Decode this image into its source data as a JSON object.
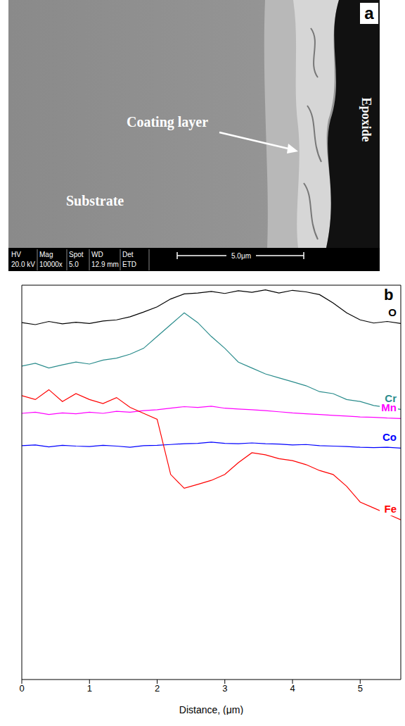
{
  "panel_a": {
    "panel_label": "a",
    "labels": {
      "substrate": "Substrate",
      "coating": "Coating layer",
      "epoxide": "Epoxide"
    },
    "info_bar": {
      "headers": [
        "HV",
        "Mag",
        "Spot",
        "WD",
        "Det"
      ],
      "values": [
        "20.0 kV",
        "10000x",
        "5.0",
        "12.9 mm",
        "ETD"
      ]
    },
    "scale_bar": "5.0μm"
  },
  "chart_data": {
    "type": "line",
    "panel_label": "b",
    "x_label": "Distance, (μm)",
    "x": [
      0,
      0.2,
      0.4,
      0.6,
      0.8,
      1.0,
      1.2,
      1.4,
      1.6,
      1.8,
      2.0,
      2.2,
      2.4,
      2.6,
      2.8,
      3.0,
      3.2,
      3.4,
      3.6,
      3.8,
      4.0,
      4.2,
      4.4,
      4.6,
      4.8,
      5.0,
      5.2,
      5.4,
      5.6
    ],
    "xlim": [
      0,
      5.6
    ],
    "xticks": [
      0,
      1,
      2,
      3,
      4,
      5
    ],
    "ylim": [
      0,
      100
    ],
    "yticks": [],
    "tick_labels": "x",
    "grid": false,
    "series": [
      {
        "name": "O",
        "color": "#000000",
        "values": [
          90.5,
          90,
          90.8,
          90.2,
          90.6,
          90.3,
          90.9,
          91.2,
          92,
          93.2,
          94.5,
          96.5,
          97.8,
          98,
          98.4,
          97.9,
          98.6,
          98.2,
          98.8,
          98,
          98.7,
          98.3,
          97.6,
          95.5,
          93,
          91.2,
          90.4,
          90.8,
          90.3
        ]
      },
      {
        "name": "Cr",
        "color": "#2a8c8c",
        "values": [
          79.5,
          80.2,
          79,
          79.8,
          80.5,
          80,
          81,
          81.5,
          82.5,
          84,
          87,
          90,
          93,
          90.5,
          87,
          84,
          80.5,
          79,
          77.5,
          76.5,
          75.5,
          74.5,
          73,
          72.5,
          71,
          70.5,
          69.5,
          69,
          68.5
        ]
      },
      {
        "name": "Mn",
        "color": "#ff00ff",
        "values": [
          67.5,
          67.8,
          67.2,
          67.6,
          67.4,
          67.8,
          67.5,
          68,
          67.8,
          68.2,
          68.4,
          68.8,
          69.2,
          69,
          69.3,
          68.8,
          68.6,
          68.4,
          68.2,
          67.9,
          67.6,
          67.4,
          67.2,
          67,
          66.8,
          66.6,
          66.5,
          66.3,
          66.2
        ]
      },
      {
        "name": "Co",
        "color": "#0000ff",
        "values": [
          59.3,
          59.5,
          59,
          59.4,
          59.2,
          59.1,
          59.4,
          59.2,
          58.9,
          59.3,
          59.4,
          59.6,
          59.8,
          59.9,
          60.2,
          59.9,
          59.8,
          60,
          59.8,
          59.7,
          59.5,
          59.6,
          59.3,
          59.2,
          59.1,
          58.9,
          58.8,
          58.9,
          58.7
        ]
      },
      {
        "name": "Fe",
        "color": "#ff0000",
        "values": [
          72,
          71,
          73.5,
          70.5,
          72.5,
          71,
          70,
          71.5,
          69,
          67.5,
          66,
          52,
          48.5,
          49.5,
          50.5,
          52,
          55,
          57.5,
          57,
          56,
          55.5,
          54.5,
          53,
          52,
          49,
          45,
          43.5,
          42,
          40.5
        ]
      }
    ]
  }
}
